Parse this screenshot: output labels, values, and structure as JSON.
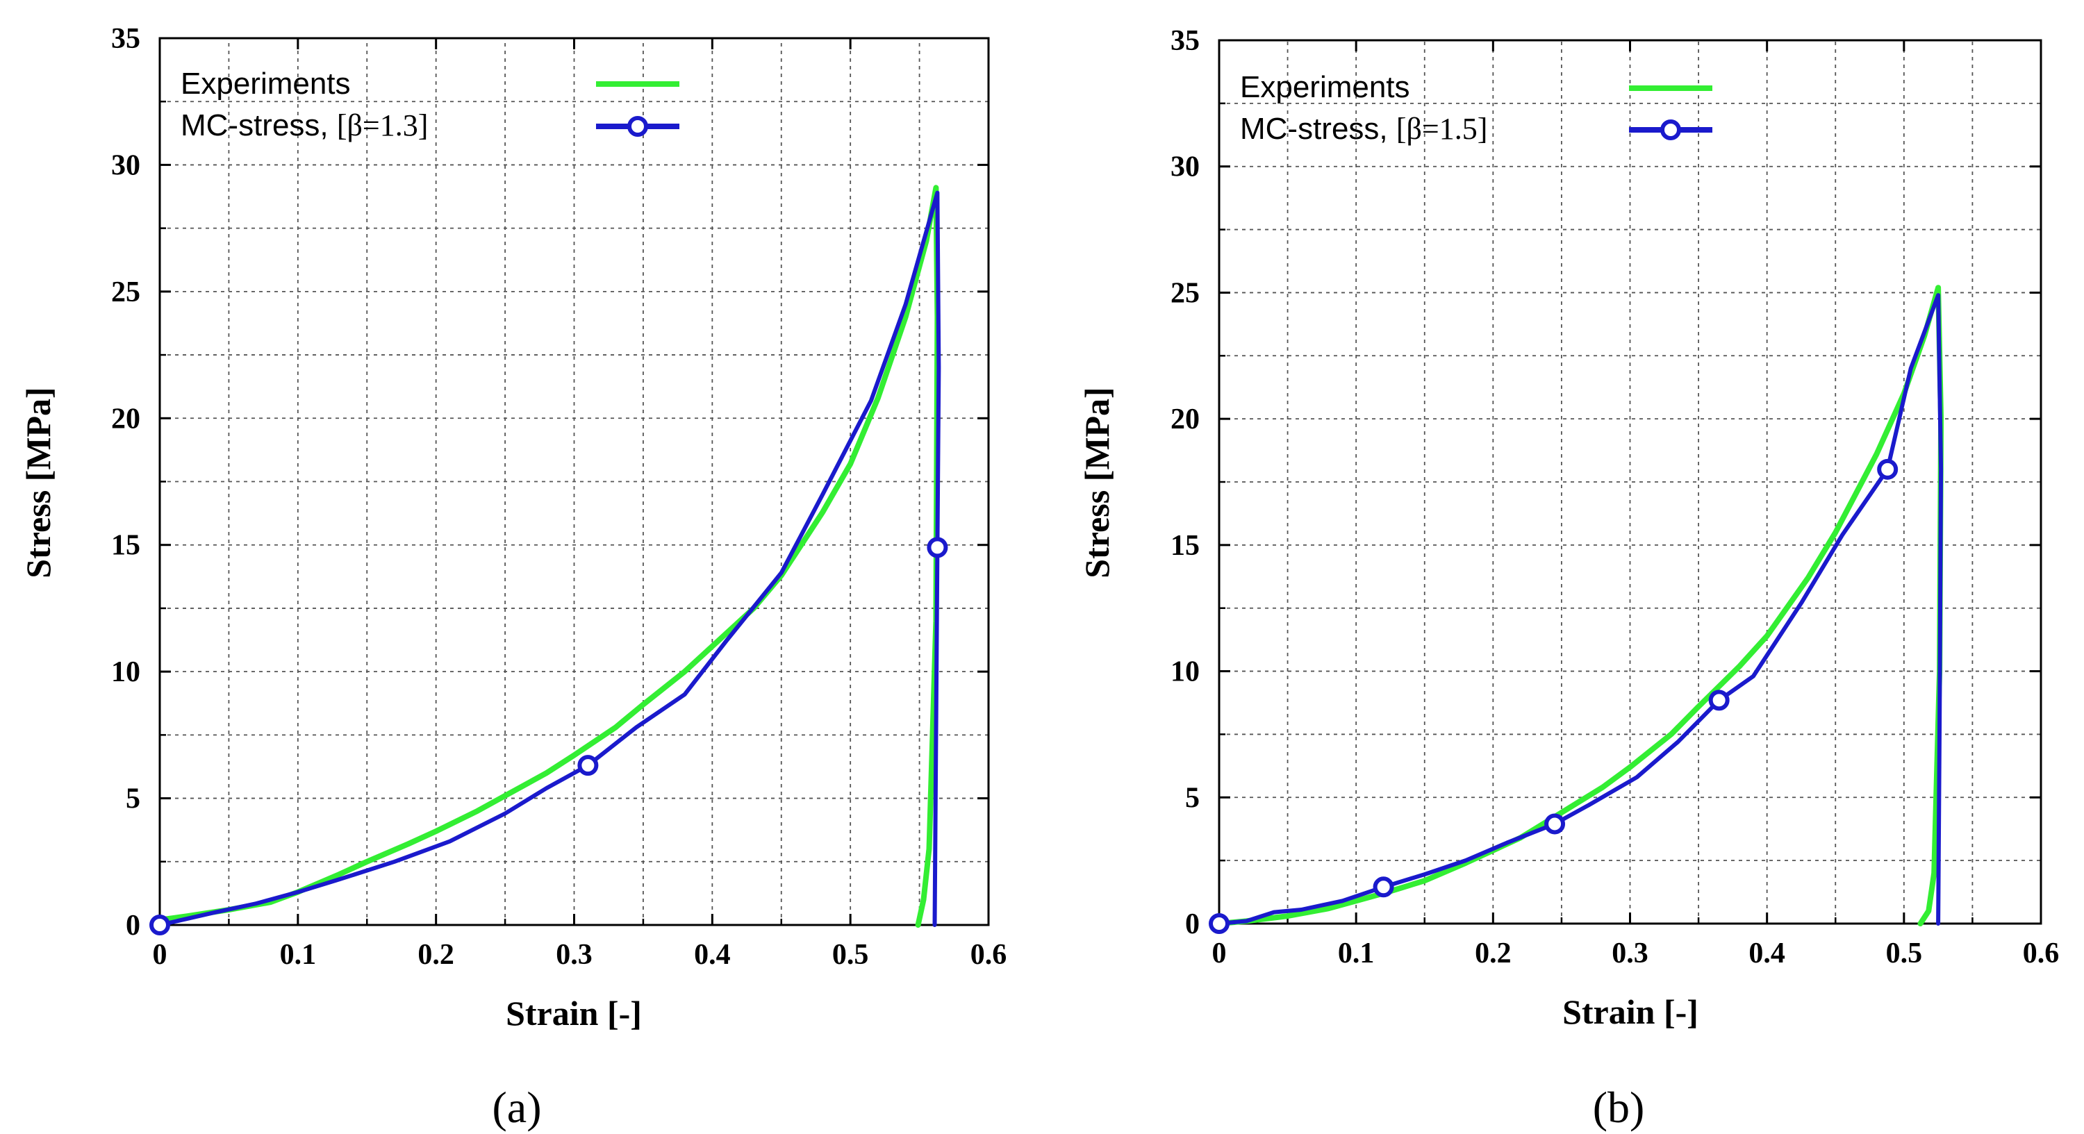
{
  "chart_data": [
    {
      "type": "line",
      "panel_label": "a",
      "xlabel": "Strain [-]",
      "ylabel": "Stress  [MPa]",
      "xlim": [
        0,
        0.6
      ],
      "ylim": [
        0,
        35
      ],
      "xticks": [
        0,
        0.1,
        0.2,
        0.3,
        0.4,
        0.5,
        0.6
      ],
      "xtick_labels": [
        "0",
        "0.1",
        "0.2",
        "0.3",
        "0.4",
        "0.5",
        "0.6"
      ],
      "yticks": [
        0,
        5,
        10,
        15,
        20,
        25,
        30,
        35
      ],
      "ytick_labels": [
        "0",
        "5",
        "10",
        "15",
        "20",
        "25",
        "30",
        "35"
      ],
      "grid": true,
      "legend_position": "top-left",
      "legend": {
        "experiments_label": "Experiments",
        "model_prefix": "MC-stress, ",
        "model_param": "[β=1.3]"
      },
      "series": [
        {
          "name": "Experiments",
          "color": "#33ee33",
          "marker": "none",
          "x": [
            0,
            0.02,
            0.05,
            0.08,
            0.1,
            0.13,
            0.15,
            0.18,
            0.2,
            0.23,
            0.25,
            0.28,
            0.3,
            0.33,
            0.35,
            0.38,
            0.4,
            0.43,
            0.45,
            0.48,
            0.5,
            0.52,
            0.54,
            0.555,
            0.562,
            0.563,
            0.562,
            0.557,
            0.553,
            0.549
          ],
          "y": [
            0.2,
            0.35,
            0.6,
            0.9,
            1.3,
            2.0,
            2.5,
            3.2,
            3.7,
            4.5,
            5.1,
            6.0,
            6.7,
            7.8,
            8.7,
            10.0,
            11.0,
            12.5,
            13.8,
            16.3,
            18.2,
            20.8,
            24.0,
            27.0,
            29.1,
            24.0,
            12.0,
            3.0,
            1.0,
            0
          ]
        },
        {
          "name": "MC-stress, [β=1.3]",
          "color": "#1a1acc",
          "marker": "circle",
          "x": [
            0,
            0.04,
            0.07,
            0.1,
            0.13,
            0.17,
            0.21,
            0.25,
            0.28,
            0.31,
            0.345,
            0.38,
            0.41,
            0.45,
            0.48,
            0.515,
            0.54,
            0.563,
            0.564,
            0.563,
            0.561
          ],
          "y": [
            0,
            0.5,
            0.85,
            1.3,
            1.8,
            2.5,
            3.3,
            4.4,
            5.4,
            6.3,
            7.8,
            9.1,
            11.2,
            13.9,
            17.0,
            20.7,
            24.5,
            28.9,
            22.0,
            14.9,
            0
          ],
          "marker_points": [
            [
              0,
              0
            ],
            [
              0.31,
              6.3
            ],
            [
              0.563,
              14.9
            ]
          ]
        }
      ]
    },
    {
      "type": "line",
      "panel_label": "b",
      "xlabel": "Strain [-]",
      "ylabel": "Stress  [MPa]",
      "xlim": [
        0,
        0.6
      ],
      "ylim": [
        0,
        35
      ],
      "xticks": [
        0,
        0.1,
        0.2,
        0.3,
        0.4,
        0.5,
        0.6
      ],
      "xtick_labels": [
        "0",
        "0.1",
        "0.2",
        "0.3",
        "0.4",
        "0.5",
        "0.6"
      ],
      "yticks": [
        0,
        5,
        10,
        15,
        20,
        25,
        30,
        35
      ],
      "ytick_labels": [
        "0",
        "5",
        "10",
        "15",
        "20",
        "25",
        "30",
        "35"
      ],
      "grid": true,
      "legend_position": "top-left",
      "legend": {
        "experiments_label": "Experiments",
        "model_prefix": "MC-stress, ",
        "model_param": "[β=1.5]"
      },
      "series": [
        {
          "name": "Experiments",
          "color": "#33ee33",
          "marker": "none",
          "x": [
            0,
            0.02,
            0.05,
            0.08,
            0.1,
            0.12,
            0.15,
            0.18,
            0.2,
            0.22,
            0.25,
            0.28,
            0.3,
            0.33,
            0.35,
            0.38,
            0.4,
            0.43,
            0.45,
            0.48,
            0.5,
            0.515,
            0.525,
            0.527,
            0.526,
            0.522,
            0.518,
            0.512
          ],
          "y": [
            0,
            0.1,
            0.3,
            0.6,
            0.9,
            1.2,
            1.7,
            2.4,
            2.9,
            3.4,
            4.4,
            5.4,
            6.2,
            7.5,
            8.6,
            10.2,
            11.4,
            13.7,
            15.5,
            18.6,
            21.0,
            23.3,
            25.2,
            20.0,
            10.0,
            2.0,
            0.5,
            0
          ]
        },
        {
          "name": "MC-stress, [β=1.5]",
          "color": "#1a1acc",
          "marker": "circle",
          "x": [
            0,
            0.02,
            0.04,
            0.06,
            0.09,
            0.12,
            0.15,
            0.18,
            0.21,
            0.245,
            0.27,
            0.305,
            0.335,
            0.365,
            0.39,
            0.425,
            0.455,
            0.488,
            0.505,
            0.525,
            0.527,
            0.526,
            0.525
          ],
          "y": [
            0,
            0.1,
            0.45,
            0.55,
            0.9,
            1.45,
            1.95,
            2.5,
            3.2,
            3.95,
            4.7,
            5.8,
            7.2,
            8.85,
            9.8,
            12.7,
            15.4,
            18.0,
            22.0,
            24.9,
            18.0,
            8.0,
            0
          ],
          "marker_points": [
            [
              0,
              0
            ],
            [
              0.12,
              1.45
            ],
            [
              0.245,
              3.95
            ],
            [
              0.365,
              8.85
            ],
            [
              0.488,
              18.0
            ]
          ]
        }
      ]
    }
  ],
  "captions": [
    "(a)",
    "(b)"
  ]
}
